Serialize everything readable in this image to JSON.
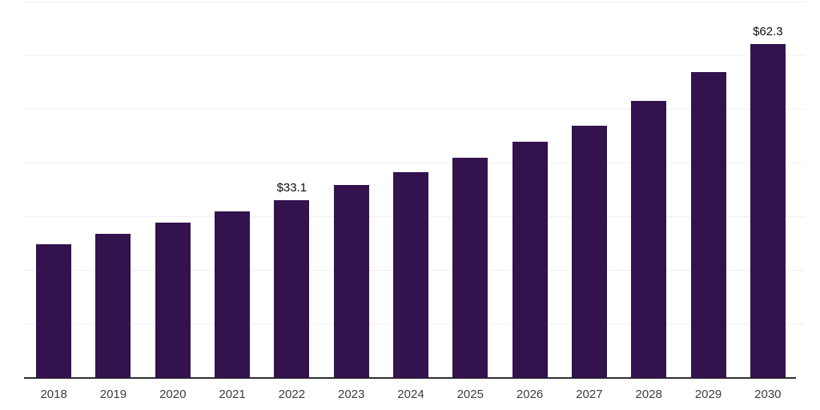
{
  "chart_data": {
    "type": "bar",
    "title": "",
    "xlabel": "",
    "ylabel": "",
    "categories": [
      "2018",
      "2019",
      "2020",
      "2021",
      "2022",
      "2023",
      "2024",
      "2025",
      "2026",
      "2027",
      "2028",
      "2029",
      "2030"
    ],
    "values": [
      24.9,
      26.9,
      29.0,
      31.0,
      33.1,
      35.9,
      38.4,
      41.1,
      44.1,
      47.0,
      51.7,
      57.0,
      62.3
    ],
    "data_labels": {
      "2022": "$33.1",
      "2030": "$62.3"
    },
    "ylim": [
      0,
      70
    ],
    "gridline_step": 10,
    "grid": "horizontal-only",
    "legend": "none",
    "y_axis_labels_visible": false,
    "colors": {
      "bar": "#33124D",
      "gridline": "#F0F0F2",
      "axis": "#2E2E2E",
      "tick_label": "#3C3C3C",
      "value_label": "#0D0D0D",
      "background": "#FFFFFF"
    }
  }
}
